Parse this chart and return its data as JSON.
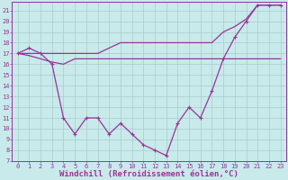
{
  "x": [
    0,
    1,
    2,
    3,
    4,
    5,
    6,
    7,
    8,
    9,
    10,
    11,
    12,
    13,
    14,
    15,
    16,
    17,
    18,
    19,
    20,
    21,
    22,
    23
  ],
  "y_main": [
    17,
    17.5,
    17,
    16,
    11,
    9.5,
    11,
    11,
    9.5,
    10.5,
    9.5,
    8.5,
    8,
    7.5,
    10.5,
    12,
    11,
    13.5,
    16.5,
    18.5,
    20,
    21.5,
    21.5,
    21.5
  ],
  "y_upper": [
    17,
    17,
    17,
    17,
    17,
    17,
    17,
    17,
    17.5,
    18,
    18,
    18,
    18,
    18,
    18,
    18,
    18,
    18,
    19,
    19.5,
    20.2,
    21.5,
    21.5,
    21.5
  ],
  "y_lower": [
    17,
    16.8,
    16.5,
    16.2,
    16,
    16.5,
    16.5,
    16.5,
    16.5,
    16.5,
    16.5,
    16.5,
    16.5,
    16.5,
    16.5,
    16.5,
    16.5,
    16.5,
    16.5,
    16.5,
    16.5,
    16.5,
    16.5,
    16.5
  ],
  "ylim": [
    7,
    21.5
  ],
  "xlim": [
    -0.5,
    23.5
  ],
  "yticks": [
    7,
    8,
    9,
    10,
    11,
    12,
    13,
    14,
    15,
    16,
    17,
    18,
    19,
    20,
    21
  ],
  "xticks": [
    0,
    1,
    2,
    3,
    4,
    5,
    6,
    7,
    8,
    9,
    10,
    11,
    12,
    13,
    14,
    15,
    16,
    17,
    18,
    19,
    20,
    21,
    22,
    23
  ],
  "line_color": "#993399",
  "bg_color": "#c8eaea",
  "grid_color": "#a8cbcb",
  "xlabel": "Windchill (Refroidissement éolien,°C)",
  "xlabel_fontsize": 6.5,
  "tick_fontsize": 5.0
}
